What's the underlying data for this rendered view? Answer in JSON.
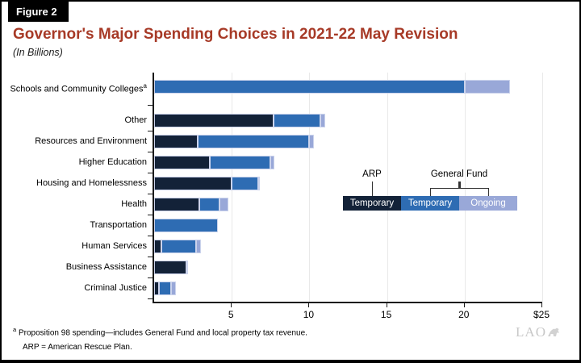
{
  "figure_label": "Figure 2",
  "title": "Governor's Major Spending Choices in 2021-22 May Revision",
  "subtitle": "(In Billions)",
  "colors": {
    "arp_temporary": "#132238",
    "gf_temporary": "#2E6CB3",
    "gf_ongoing": "#99A8D8",
    "segment_border": "#CBD3EC",
    "title_red": "#A73A27",
    "axis": "#1a1a1a"
  },
  "legend": {
    "arp_label": "ARP",
    "general_fund_label": "General Fund",
    "boxes": [
      {
        "label": "Temporary",
        "color": "#132238",
        "series": "ARP Temporary"
      },
      {
        "label": "Temporary",
        "color": "#2E6CB3",
        "series": "General Fund Temporary"
      },
      {
        "label": "Ongoing",
        "color": "#99A8D8",
        "series": "General Fund Ongoing"
      }
    ]
  },
  "chart_data": {
    "type": "bar",
    "orientation": "horizontal",
    "title": "Governor's Major Spending Choices in 2021-22 May Revision",
    "units": "billions of dollars",
    "xlabel": "",
    "ylabel": "",
    "xlim": [
      0,
      25
    ],
    "x_tick_values": [
      5,
      10,
      15,
      20,
      25
    ],
    "x_tick_labels": [
      "5",
      "10",
      "15",
      "20",
      "$25"
    ],
    "grid": "vertical-faint",
    "legend_position": "inside-right",
    "series_names": [
      "ARP Temporary",
      "General Fund Temporary",
      "General Fund Ongoing"
    ],
    "rows": [
      {
        "category": "Schools and Community Colleges",
        "sup": "a",
        "arp_temporary": 0,
        "gf_temporary": 20.0,
        "gf_ongoing": 2.9
      },
      {
        "category": "Other",
        "sup": "",
        "arp_temporary": 7.7,
        "gf_temporary": 3.0,
        "gf_ongoing": 0.3
      },
      {
        "category": "Resources and Environment",
        "sup": "",
        "arp_temporary": 2.8,
        "gf_temporary": 7.2,
        "gf_ongoing": 0.3
      },
      {
        "category": "Higher Education",
        "sup": "",
        "arp_temporary": 3.6,
        "gf_temporary": 3.9,
        "gf_ongoing": 0.25
      },
      {
        "category": "Housing and Homelessness",
        "sup": "",
        "arp_temporary": 5.0,
        "gf_temporary": 1.7,
        "gf_ongoing": 0.1
      },
      {
        "category": "Health",
        "sup": "",
        "arp_temporary": 2.9,
        "gf_temporary": 1.3,
        "gf_ongoing": 0.6
      },
      {
        "category": "Transportation",
        "sup": "",
        "arp_temporary": 0,
        "gf_temporary": 4.1,
        "gf_ongoing": 0
      },
      {
        "category": "Human Services",
        "sup": "",
        "arp_temporary": 0.45,
        "gf_temporary": 2.25,
        "gf_ongoing": 0.3
      },
      {
        "category": "Business Assistance",
        "sup": "",
        "arp_temporary": 2.1,
        "gf_temporary": 0,
        "gf_ongoing": 0.1
      },
      {
        "category": "Criminal Justice",
        "sup": "",
        "arp_temporary": 0.3,
        "gf_temporary": 0.8,
        "gf_ongoing": 0.3
      }
    ]
  },
  "footnotes": {
    "note_a_sup": "a",
    "note_a_text": " Proposition 98 spending—includes General Fund and local property tax revenue.",
    "note_arp": "ARP = American Rescue Plan."
  },
  "logo_text": "LAO"
}
